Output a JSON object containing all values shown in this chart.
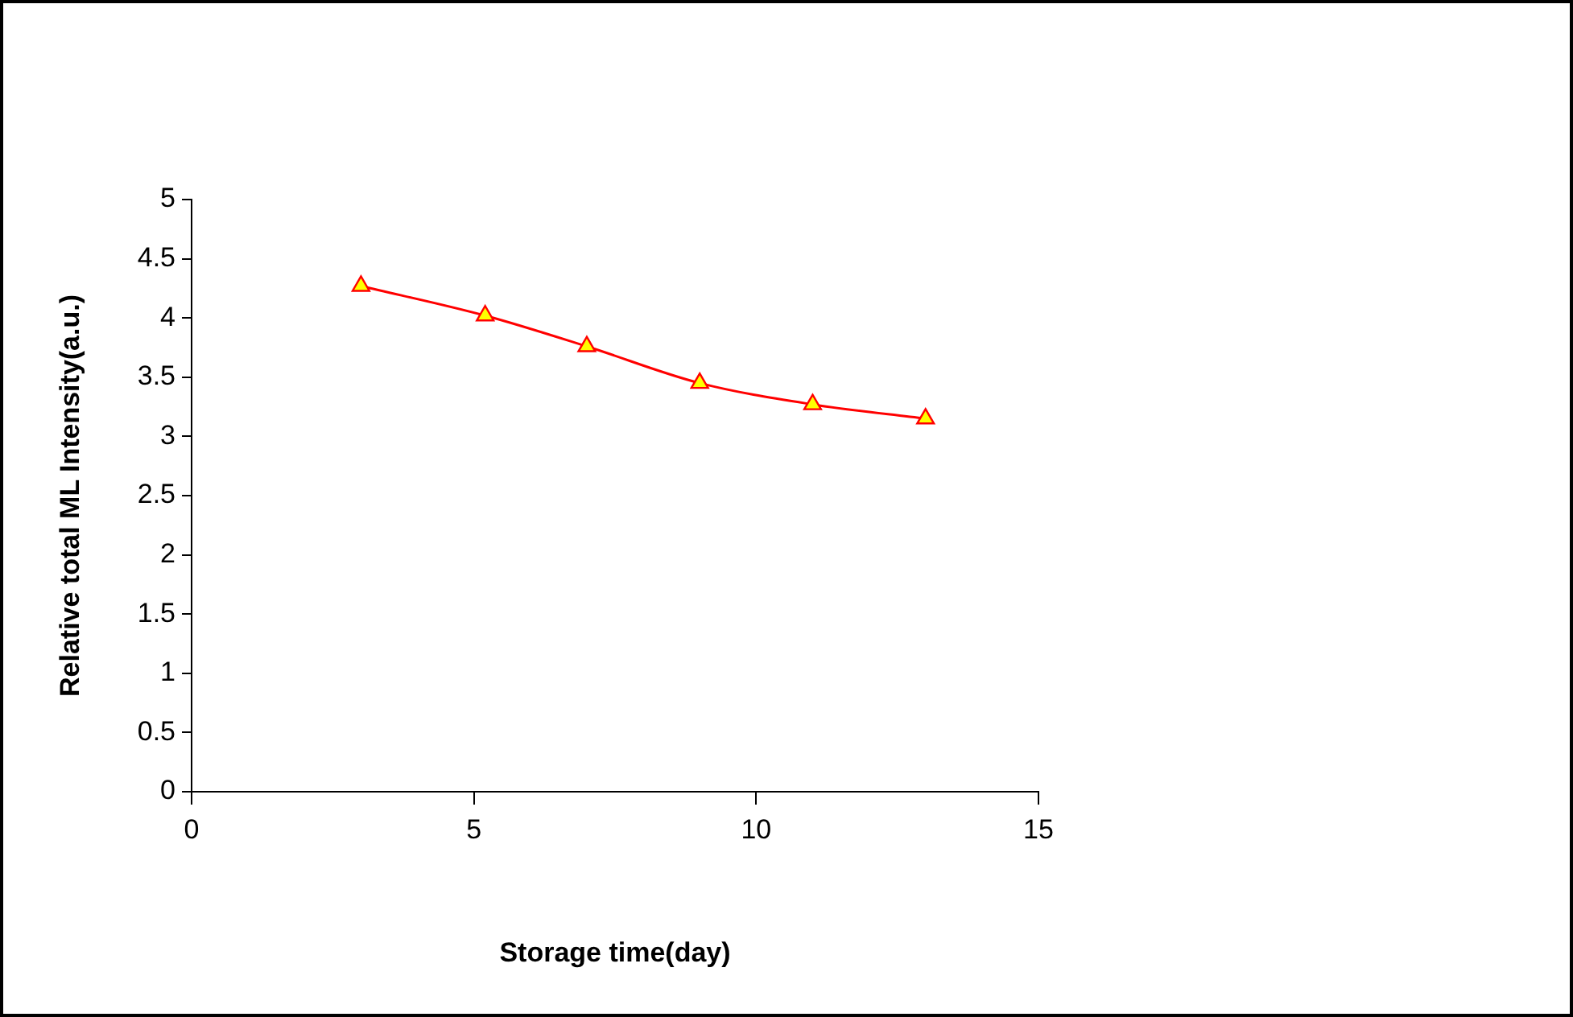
{
  "chart_data": {
    "type": "line",
    "xlabel": "Storage time(day)",
    "ylabel": "Relative total ML Intensity(a.u.)",
    "x": [
      3,
      5.2,
      7,
      9,
      11,
      13
    ],
    "series": [
      {
        "color": "#ff0000",
        "values": [
          4.27,
          4.02,
          3.76,
          3.45,
          3.27,
          3.15
        ]
      }
    ],
    "xlim": [
      0,
      15
    ],
    "xticks": [
      0,
      5,
      10,
      15
    ],
    "ylim": [
      0,
      5
    ],
    "yticks": [
      0,
      0.5,
      1,
      1.5,
      2,
      2.5,
      3,
      3.5,
      4,
      4.5,
      5
    ],
    "grid": false,
    "legend": false,
    "marker": "triangle",
    "line_style": "solid"
  }
}
